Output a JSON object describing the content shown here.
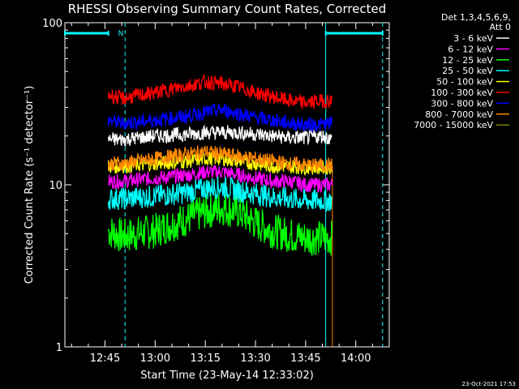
{
  "chart_data": {
    "type": "line",
    "title": "RHESSI Observing Summary Count Rates, Corrected",
    "xlabel": "Start Time (23-May-14 12:33:02)",
    "ylabel": "Corrected Count Rate (s⁻¹ detector⁻¹)",
    "yscale": "log",
    "xlim": [
      "12:33",
      "14:10"
    ],
    "ylim": [
      1,
      100
    ],
    "x_ticks": [
      "12:45",
      "13:00",
      "13:15",
      "13:30",
      "13:45",
      "14:00"
    ],
    "y_ticks": [
      "1",
      "10",
      "100"
    ],
    "legend": {
      "header": [
        "Det 1,3,4,5,6,9,",
        "Att 0"
      ],
      "placement": "top-right outside plot"
    },
    "data_window": {
      "start": "12:46",
      "end": "13:53"
    },
    "series": [
      {
        "name": "3 - 6 keV",
        "color": "#ffffff",
        "x": [
          "12:46",
          "12:50",
          "13:00",
          "13:10",
          "13:15",
          "13:20",
          "13:25",
          "13:30",
          "13:35",
          "13:40",
          "13:45",
          "13:50",
          "13:53"
        ],
        "y": [
          19,
          19,
          20,
          20.5,
          21,
          21,
          21,
          20.5,
          20,
          19.5,
          19.5,
          20,
          19
        ]
      },
      {
        "name": "6 - 12 keV",
        "color": "#ff00ff",
        "x": [
          "12:46",
          "12:50",
          "13:00",
          "13:10",
          "13:15",
          "13:20",
          "13:25",
          "13:30",
          "13:35",
          "13:40",
          "13:45",
          "13:50",
          "13:53"
        ],
        "y": [
          10.5,
          10.5,
          11,
          11.5,
          12,
          12,
          11.5,
          11,
          10.5,
          10.5,
          10,
          10,
          10
        ]
      },
      {
        "name": "12 - 25 keV",
        "color": "#00ff00",
        "x": [
          "12:46",
          "12:50",
          "13:00",
          "13:10",
          "13:15",
          "13:20",
          "13:25",
          "13:30",
          "13:35",
          "13:40",
          "13:45",
          "13:50",
          "13:53"
        ],
        "y": [
          5.2,
          4.8,
          5.2,
          6.2,
          6.8,
          7.2,
          6.8,
          5.8,
          5.2,
          4.9,
          4.7,
          4.7,
          4.7
        ]
      },
      {
        "name": "25 - 50 keV",
        "color": "#00ffff",
        "x": [
          "12:46",
          "12:50",
          "13:00",
          "13:10",
          "13:15",
          "13:20",
          "13:25",
          "13:30",
          "13:35",
          "13:40",
          "13:45",
          "13:50",
          "13:53"
        ],
        "y": [
          8.2,
          8.2,
          8.5,
          9,
          9.5,
          9.7,
          9.2,
          8.8,
          8.4,
          8.2,
          8,
          8,
          8
        ]
      },
      {
        "name": "50 - 100 keV",
        "color": "#ffff00",
        "x": [
          "12:46",
          "12:50",
          "13:00",
          "13:10",
          "13:15",
          "13:20",
          "13:25",
          "13:30",
          "13:35",
          "13:40",
          "13:45",
          "13:50",
          "13:53"
        ],
        "y": [
          13,
          13,
          13.5,
          14,
          14.5,
          14.5,
          14,
          13.5,
          13,
          13,
          12.8,
          12.8,
          12.8
        ]
      },
      {
        "name": "100 - 300 keV",
        "color": "#ff0000",
        "x": [
          "12:46",
          "12:50",
          "13:00",
          "13:10",
          "13:15",
          "13:20",
          "13:25",
          "13:30",
          "13:35",
          "13:40",
          "13:45",
          "13:50",
          "13:53"
        ],
        "y": [
          36,
          34,
          37,
          41,
          43,
          42,
          40,
          37,
          35,
          33,
          32,
          33,
          33
        ]
      },
      {
        "name": "300 - 800 keV",
        "color": "#0000ff",
        "x": [
          "12:46",
          "12:50",
          "13:00",
          "13:10",
          "13:15",
          "13:20",
          "13:25",
          "13:30",
          "13:35",
          "13:40",
          "13:45",
          "13:50",
          "13:53"
        ],
        "y": [
          25,
          24,
          25,
          26.5,
          28,
          29,
          27.5,
          26,
          25,
          24,
          23.5,
          23.5,
          24
        ]
      },
      {
        "name": "800 - 7000 keV",
        "color": "#ff8800",
        "x": [
          "12:46",
          "12:50",
          "13:00",
          "13:10",
          "13:15",
          "13:20",
          "13:25",
          "13:30",
          "13:35",
          "13:40",
          "13:45",
          "13:50",
          "13:53"
        ],
        "y": [
          13.5,
          13.5,
          14.5,
          15.5,
          16,
          15.5,
          15,
          14.5,
          14,
          13.5,
          13.2,
          13.2,
          13.2
        ]
      },
      {
        "name": "7000 - 15000 keV",
        "color": "#808000",
        "x": [],
        "y": []
      }
    ],
    "markers": {
      "attenuator_bar_label": "N",
      "cyan_bars": [
        [
          "12:33",
          "12:46"
        ],
        [
          "13:51",
          "14:08"
        ]
      ],
      "dashed_lines": [
        "12:51",
        "14:08"
      ],
      "solid_lines": [
        "13:51"
      ],
      "orange_line": "13:53"
    }
  },
  "timestamp": "23-Oct-2021 17:53"
}
